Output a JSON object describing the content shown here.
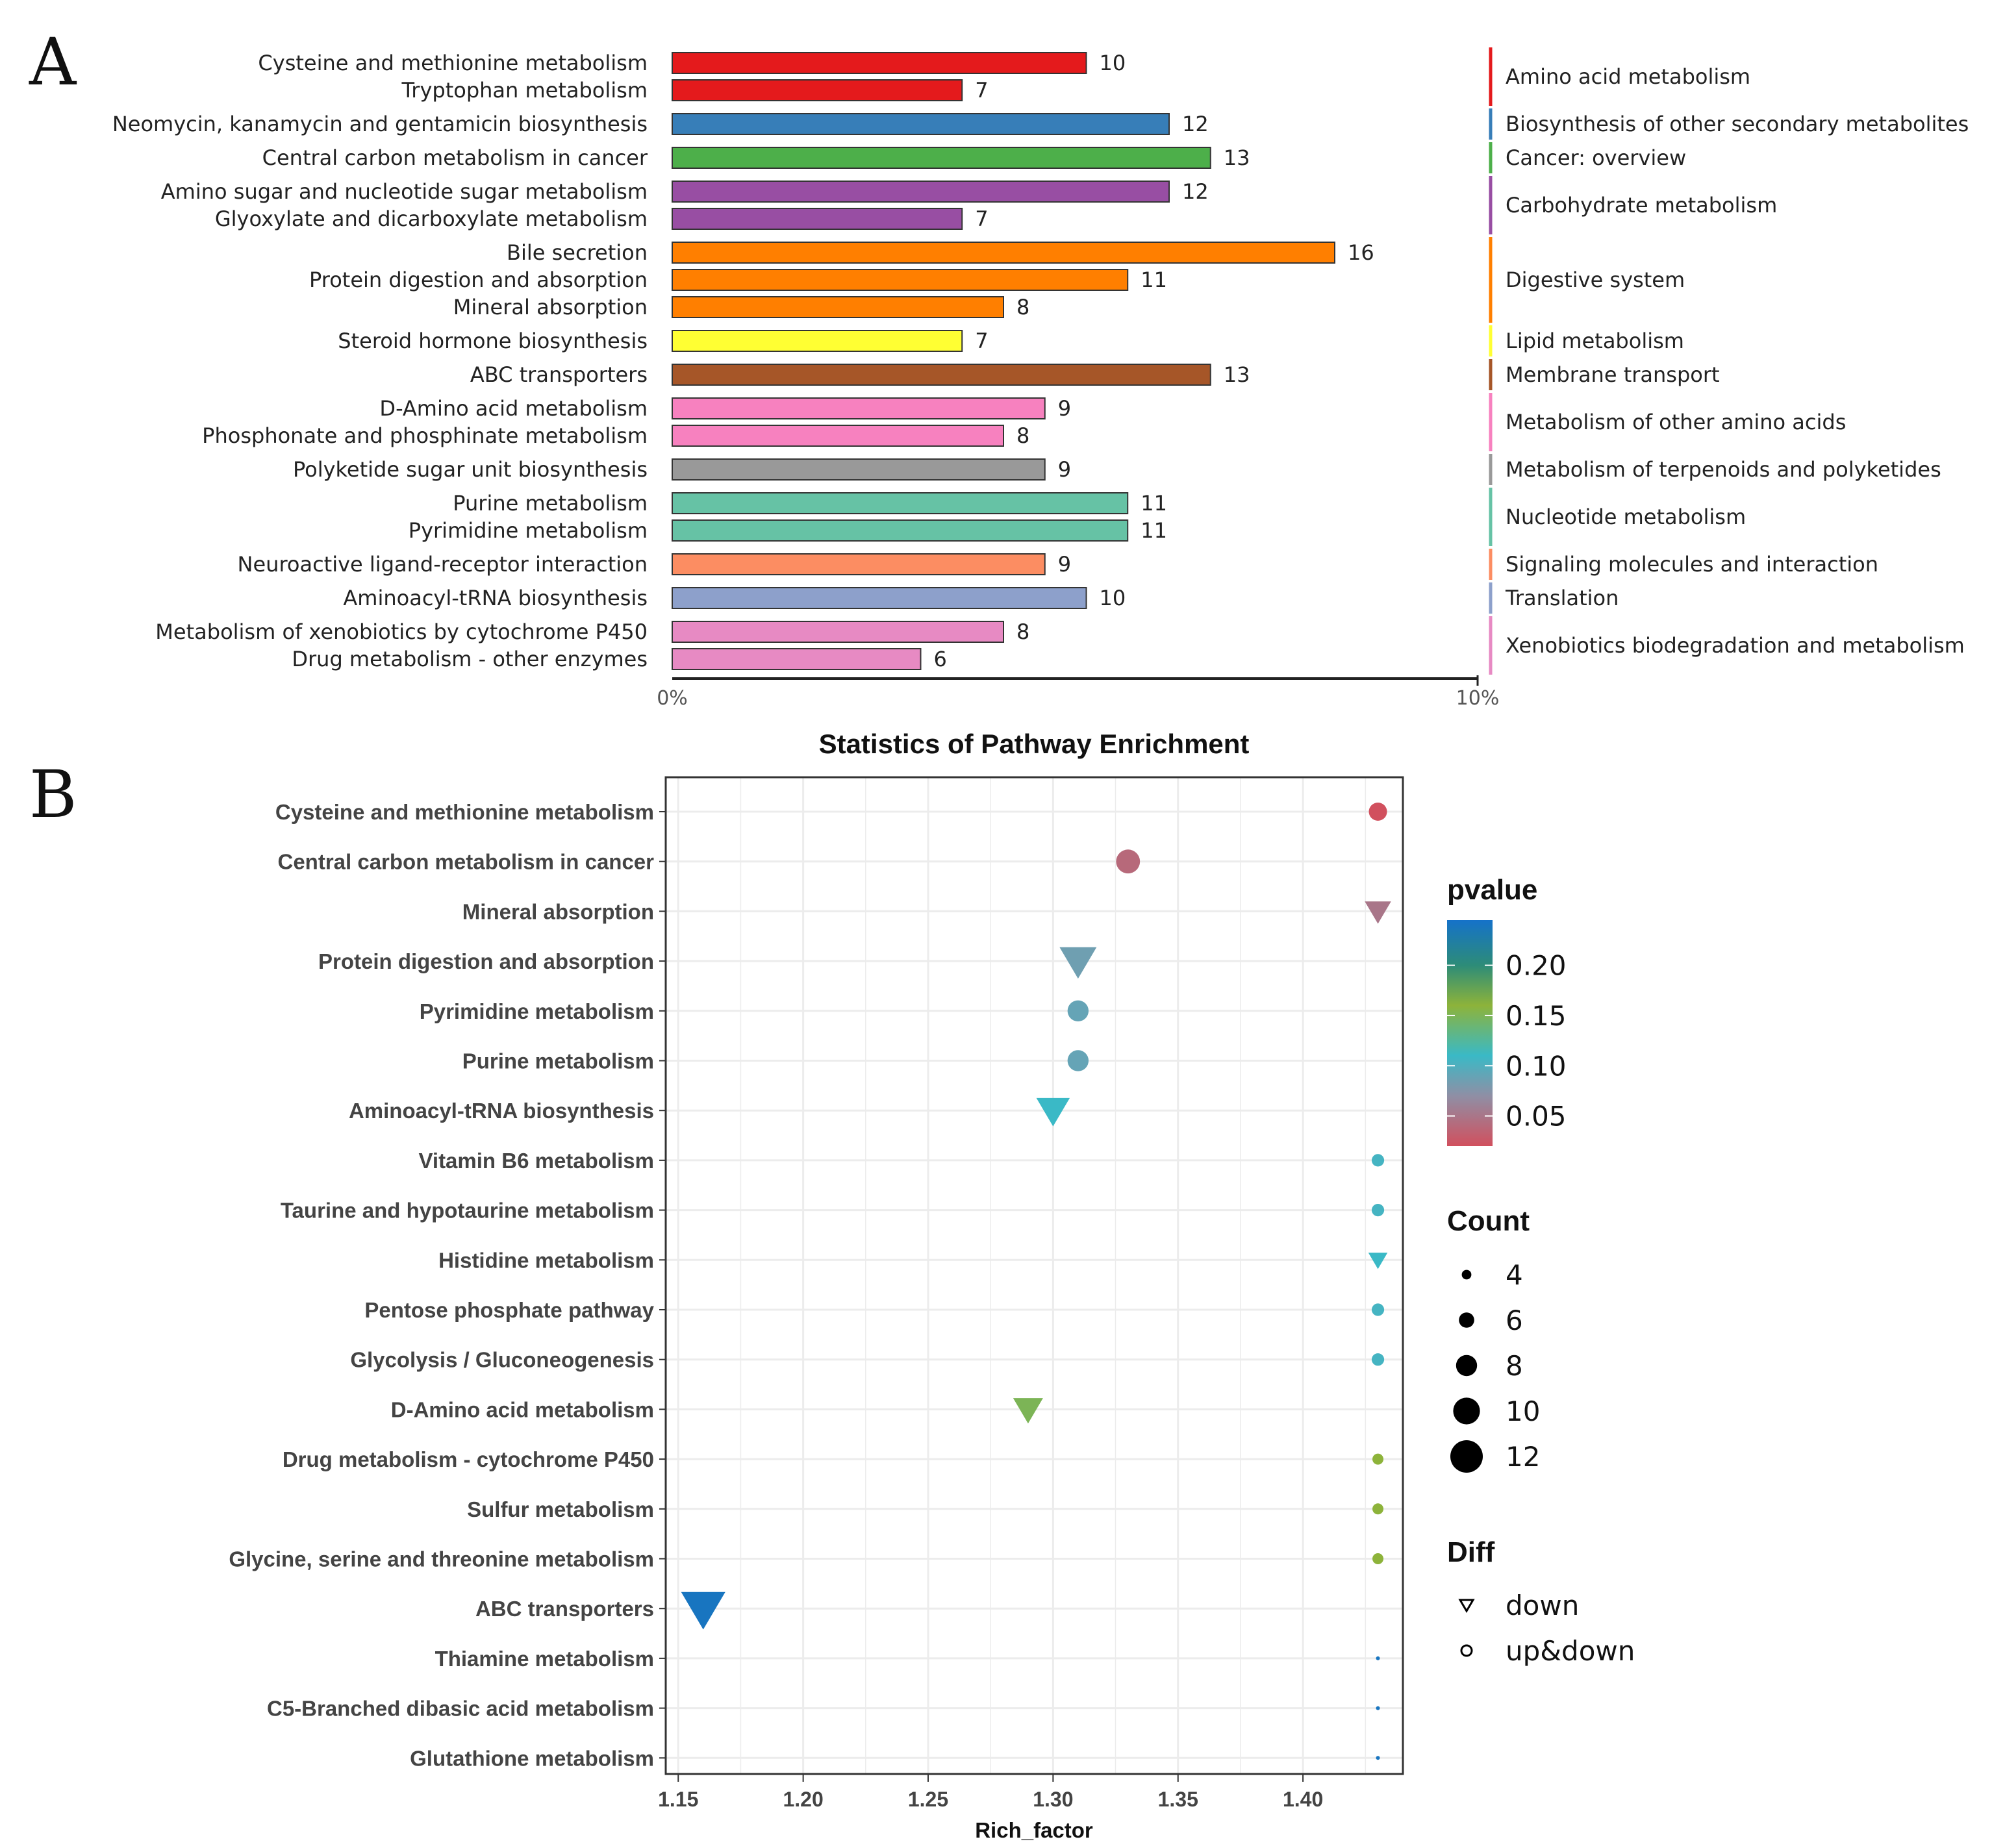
{
  "chart_data": [
    {
      "panel": "A",
      "panel_label": "A",
      "type": "bar",
      "orientation": "horizontal",
      "xlim": [
        0,
        10
      ],
      "x_ticks": [
        "0%",
        "10%"
      ],
      "categories": [
        "Cysteine and methionine metabolism",
        "Tryptophan metabolism",
        "Neomycin, kanamycin and gentamicin biosynthesis",
        "Central carbon metabolism in cancer",
        "Amino sugar and nucleotide sugar metabolism",
        "Glyoxylate and dicarboxylate metabolism",
        "Bile secretion",
        "Protein digestion and absorption",
        "Mineral absorption",
        "Steroid hormone biosynthesis",
        "ABC transporters",
        "D-Amino acid metabolism",
        "Phosphonate and phosphinate metabolism",
        "Polyketide sugar unit biosynthesis",
        "Purine metabolism",
        "Pyrimidine metabolism",
        "Neuroactive ligand-receptor interaction",
        "Aminoacyl-tRNA biosynthesis",
        "Metabolism of xenobiotics by cytochrome P450",
        "Drug metabolism - other enzymes"
      ],
      "values": [
        10,
        7,
        12,
        13,
        12,
        7,
        16,
        11,
        8,
        7,
        13,
        9,
        8,
        9,
        11,
        11,
        9,
        10,
        8,
        6
      ],
      "value_labels": [
        "10",
        "7",
        "12",
        "13",
        "12",
        "7",
        "16",
        "11",
        "8",
        "7",
        "13",
        "9",
        "8",
        "9",
        "11",
        "11",
        "9",
        "10",
        "8",
        "6"
      ],
      "group_index": [
        0,
        0,
        1,
        2,
        3,
        3,
        4,
        4,
        4,
        5,
        6,
        7,
        7,
        8,
        9,
        9,
        10,
        11,
        12,
        12
      ],
      "groups": [
        {
          "name": "Amino acid metabolism",
          "color": "#e41a1c"
        },
        {
          "name": "Biosynthesis of other secondary metabolites",
          "color": "#377eb8"
        },
        {
          "name": "Cancer: overview",
          "color": "#4daf4a"
        },
        {
          "name": "Carbohydrate metabolism",
          "color": "#984ea3"
        },
        {
          "name": "Digestive system",
          "color": "#ff7f00"
        },
        {
          "name": "Lipid metabolism",
          "color": "#ffff33"
        },
        {
          "name": "Membrane transport",
          "color": "#a65628"
        },
        {
          "name": "Metabolism of other amino acids",
          "color": "#f781bf"
        },
        {
          "name": "Metabolism of terpenoids and polyketides",
          "color": "#999999"
        },
        {
          "name": "Nucleotide metabolism",
          "color": "#66c2a5"
        },
        {
          "name": "Signaling molecules and interaction",
          "color": "#fc8d62"
        },
        {
          "name": "Translation",
          "color": "#8da0cb"
        },
        {
          "name": "Xenobiotics biodegradation and metabolism",
          "color": "#e78ac3"
        }
      ]
    },
    {
      "panel": "B",
      "panel_label": "B",
      "type": "scatter",
      "title": "Statistics of Pathway Enrichment",
      "xlabel": "Rich_factor",
      "ylabel": "",
      "xlim": [
        1.145,
        1.44
      ],
      "x_ticks": [
        1.15,
        1.2,
        1.25,
        1.3,
        1.35,
        1.4
      ],
      "x_tick_labels": [
        "1.15",
        "1.20",
        "1.25",
        "1.30",
        "1.35",
        "1.40"
      ],
      "grid": true,
      "categories": [
        "Cysteine and methionine metabolism",
        "Central carbon metabolism in cancer",
        "Mineral absorption",
        "Protein digestion and absorption",
        "Pyrimidine metabolism",
        "Purine metabolism",
        "Aminoacyl-tRNA biosynthesis",
        "Vitamin B6 metabolism",
        "Taurine and hypotaurine metabolism",
        "Histidine metabolism",
        "Pentose phosphate pathway",
        "Glycolysis / Gluconeogenesis",
        "D-Amino acid metabolism",
        "Drug metabolism - cytochrome P450",
        "Sulfur metabolism",
        "Glycine, serine and threonine metabolism",
        "ABC transporters",
        "Thiamine metabolism",
        "C5-Branched dibasic acid metabolism",
        "Glutathione metabolism"
      ],
      "points": [
        {
          "rich_factor": 1.43,
          "count": 7,
          "pvalue": 0.02,
          "diff": "up&down"
        },
        {
          "rich_factor": 1.33,
          "count": 9,
          "pvalue": 0.04,
          "diff": "up&down"
        },
        {
          "rich_factor": 1.43,
          "count": 8,
          "pvalue": 0.05,
          "diff": "down"
        },
        {
          "rich_factor": 1.31,
          "count": 11,
          "pvalue": 0.085,
          "diff": "down"
        },
        {
          "rich_factor": 1.31,
          "count": 8,
          "pvalue": 0.09,
          "diff": "up&down"
        },
        {
          "rich_factor": 1.31,
          "count": 8,
          "pvalue": 0.09,
          "diff": "up&down"
        },
        {
          "rich_factor": 1.3,
          "count": 10,
          "pvalue": 0.11,
          "diff": "down"
        },
        {
          "rich_factor": 1.43,
          "count": 5,
          "pvalue": 0.105,
          "diff": "up&down"
        },
        {
          "rich_factor": 1.43,
          "count": 5,
          "pvalue": 0.105,
          "diff": "up&down"
        },
        {
          "rich_factor": 1.43,
          "count": 6,
          "pvalue": 0.11,
          "diff": "down"
        },
        {
          "rich_factor": 1.43,
          "count": 5,
          "pvalue": 0.105,
          "diff": "up&down"
        },
        {
          "rich_factor": 1.43,
          "count": 5,
          "pvalue": 0.105,
          "diff": "up&down"
        },
        {
          "rich_factor": 1.29,
          "count": 9,
          "pvalue": 0.15,
          "diff": "down"
        },
        {
          "rich_factor": 1.43,
          "count": 4.5,
          "pvalue": 0.16,
          "diff": "up&down"
        },
        {
          "rich_factor": 1.43,
          "count": 4.5,
          "pvalue": 0.16,
          "diff": "up&down"
        },
        {
          "rich_factor": 1.43,
          "count": 4.5,
          "pvalue": 0.16,
          "diff": "up&down"
        },
        {
          "rich_factor": 1.16,
          "count": 13,
          "pvalue": 0.24,
          "diff": "down"
        },
        {
          "rich_factor": 1.43,
          "count": 2,
          "pvalue": 0.24,
          "diff": "up&down"
        },
        {
          "rich_factor": 1.43,
          "count": 2,
          "pvalue": 0.24,
          "diff": "up&down"
        },
        {
          "rich_factor": 1.43,
          "count": 2,
          "pvalue": 0.24,
          "diff": "up&down"
        }
      ],
      "legend": {
        "pvalue": {
          "title": "pvalue",
          "range": [
            0.02,
            0.245
          ],
          "ticks": [
            0.2,
            0.15,
            0.1,
            0.05
          ],
          "tick_labels": [
            "0.20",
            "0.15",
            "0.10",
            "0.05"
          ],
          "gradient": [
            {
              "p": 0.02,
              "color": "#d1505e"
            },
            {
              "p": 0.07,
              "color": "#8f8fa5"
            },
            {
              "p": 0.11,
              "color": "#3ab9c6"
            },
            {
              "p": 0.16,
              "color": "#8db33a"
            },
            {
              "p": 0.2,
              "color": "#2d8c78"
            },
            {
              "p": 0.245,
              "color": "#1572c9"
            }
          ]
        },
        "count": {
          "title": "Count",
          "values": [
            4,
            6,
            8,
            10,
            12
          ],
          "labels": [
            "4",
            "6",
            "8",
            "10",
            "12"
          ]
        },
        "diff": {
          "title": "Diff",
          "entries": [
            {
              "key": "down",
              "label": "down"
            },
            {
              "key": "up&down",
              "label": "up&down"
            }
          ]
        }
      }
    }
  ]
}
